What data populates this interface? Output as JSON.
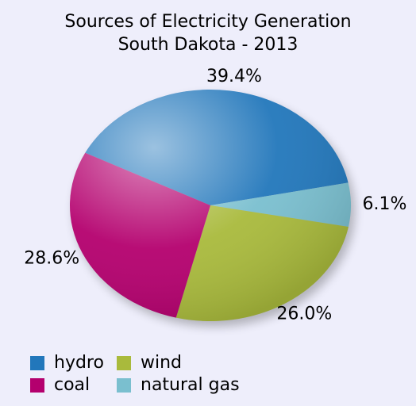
{
  "chart_data": {
    "type": "pie",
    "title": [
      "Sources of Electricity Generation",
      "South Dakota - 2013"
    ],
    "categories": [
      "hydro",
      "natural gas",
      "wind",
      "coal"
    ],
    "values": [
      39.4,
      6.1,
      26.0,
      28.6
    ],
    "value_labels": [
      "39.4%",
      "6.1%",
      "26.0%",
      "28.6%"
    ],
    "colors": [
      "#2277bb",
      "#7abfcf",
      "#a9ba3c",
      "#b4006e"
    ],
    "legend_order": [
      0,
      3,
      2,
      1
    ]
  }
}
